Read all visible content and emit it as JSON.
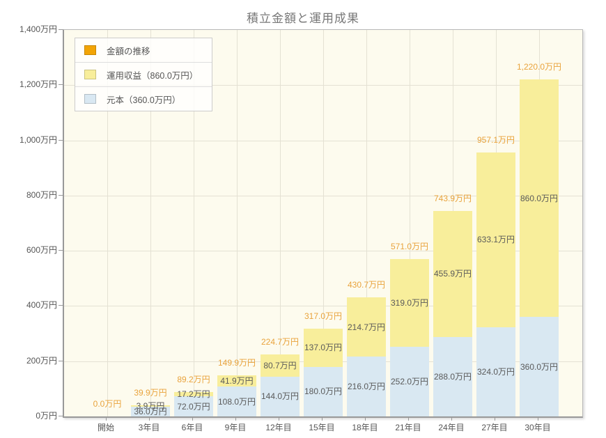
{
  "page": {
    "title": "積立金額と運用成果"
  },
  "colors": {
    "accent_orange": "#F2A405",
    "profit_yellow": "#F8EE9B",
    "principal_blue": "#D9E8F2",
    "total_label_orange": "#E9A33C",
    "plot_background": "#FDFBEE",
    "grid": "#E4E1D3",
    "axis": "#999999"
  },
  "legend": {
    "items": [
      {
        "label": "金額の推移",
        "color": "#F2A405"
      },
      {
        "label": "運用収益（860.0万円）",
        "color": "#F8EE9B"
      },
      {
        "label": "元本（360.0万円）",
        "color": "#D9E8F2"
      }
    ]
  },
  "chart_data": {
    "type": "bar",
    "stacked": true,
    "title": "積立金額と運用成果",
    "xlabel": "",
    "ylabel": "",
    "ylim": [
      0,
      1400
    ],
    "grid": true,
    "legend_position": "top-left",
    "categories": [
      "開始",
      "3年目",
      "6年目",
      "9年目",
      "12年目",
      "15年目",
      "18年目",
      "21年目",
      "24年目",
      "27年目",
      "30年目"
    ],
    "series": [
      {
        "name": "元本",
        "color": "#D9E8F2",
        "values": [
          0,
          36.0,
          72.0,
          108.0,
          144.0,
          180.0,
          216.0,
          252.0,
          288.0,
          324.0,
          360.0
        ],
        "labels": [
          "",
          "36.0万円",
          "72.0万円",
          "108.0万円",
          "144.0万円",
          "180.0万円",
          "216.0万円",
          "252.0万円",
          "288.0万円",
          "324.0万円",
          "360.0万円"
        ]
      },
      {
        "name": "運用収益",
        "color": "#F8EE9B",
        "values": [
          0,
          3.9,
          17.2,
          41.9,
          80.7,
          137.0,
          214.7,
          319.0,
          455.9,
          633.1,
          860.0
        ],
        "labels": [
          "",
          "3.9万円",
          "17.2万円",
          "41.9万円",
          "80.7万円",
          "137.0万円",
          "214.7万円",
          "319.0万円",
          "455.9万円",
          "633.1万円",
          "860.0万円"
        ]
      }
    ],
    "totals": [
      0.0,
      39.9,
      89.2,
      149.9,
      224.7,
      317.0,
      430.7,
      571.0,
      743.9,
      957.1,
      1220.0
    ],
    "total_labels": [
      "0.0万円",
      "39.9万円",
      "89.2万円",
      "149.9万円",
      "224.7万円",
      "317.0万円",
      "430.7万円",
      "571.0万円",
      "743.9万円",
      "957.1万円",
      "1,220.0万円"
    ],
    "y_tick_values": [
      0,
      200,
      400,
      600,
      800,
      1000,
      1200,
      1400
    ],
    "y_tick_labels": [
      "0万円",
      "200万円",
      "400万円",
      "600万円",
      "800万円",
      "1,000万円",
      "1,200万円",
      "1,400万円"
    ]
  }
}
